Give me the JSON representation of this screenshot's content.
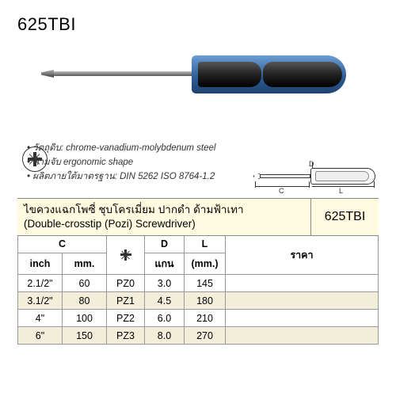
{
  "product_code": "625TBI",
  "features": [
    "วัตถุดิบ: chrome-vanadium-molybdenum steel",
    "ด้ามจับ ergonomic shape",
    "ผลิตภายใต้มาตรฐาน: DIN 5262 ISO 8764-1.2"
  ],
  "diagram_labels": {
    "D": "D",
    "C": "C",
    "L": "L"
  },
  "header": {
    "title_thai": "ไขควงแฉกโพซี่ ชุบโครเมี่ยม ปากดำ ด้ามฟ้าเทา",
    "title_eng": "(Double-crosstip (Pozi) Screwdriver)",
    "code": "625TBI"
  },
  "columns": {
    "c": "C",
    "inch": "inch",
    "mm": "mm.",
    "d_label": "D",
    "d_sub": "แกน",
    "l_label": "L",
    "l_sub": "(mm.)",
    "price": "ราคา"
  },
  "rows": [
    {
      "inch": "2.1/2\"",
      "mm": "60",
      "pz": "PZ0",
      "d": "3.0",
      "l": "145"
    },
    {
      "inch": "3.1/2\"",
      "mm": "80",
      "pz": "PZ1",
      "d": "4.5",
      "l": "180"
    },
    {
      "inch": "4\"",
      "mm": "100",
      "pz": "PZ2",
      "d": "6.0",
      "l": "210"
    },
    {
      "inch": "6\"",
      "mm": "150",
      "pz": "PZ3",
      "d": "8.0",
      "l": "270"
    }
  ],
  "colors": {
    "handle_blue": "#2d5a95",
    "handle_black": "#1a1a1a",
    "shaft_grey": "#8a8a8a",
    "header_bg": "#fffbe0",
    "row_alt_bg": "#f2eed9",
    "border": "#999999"
  }
}
